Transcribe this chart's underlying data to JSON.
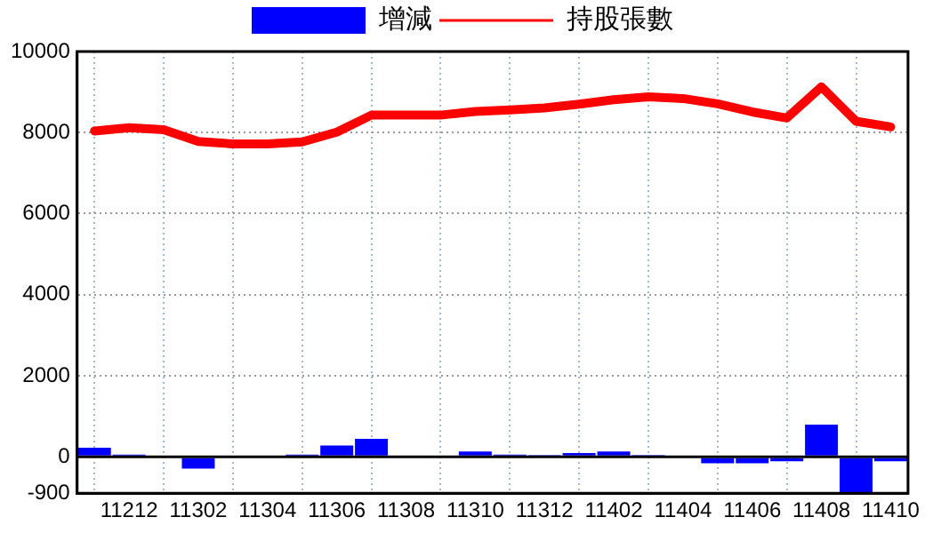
{
  "chart_data": {
    "type": "bar",
    "categories": [
      null,
      "11212",
      null,
      "11302",
      null,
      "11304",
      null,
      "11306",
      null,
      "11308",
      null,
      "11310",
      null,
      "11312",
      null,
      "11402",
      null,
      "11404",
      null,
      "11406",
      null,
      "11408",
      null,
      "11410"
    ],
    "series": [
      {
        "name": "增減",
        "color": "#0000ff",
        "values": [
          220,
          50,
          0,
          -290,
          0,
          0,
          50,
          280,
          440,
          0,
          0,
          130,
          50,
          40,
          90,
          130,
          40,
          0,
          -160,
          -160,
          -110,
          790,
          -880,
          -110
        ]
      },
      {
        "name": "持股張數",
        "type": "line",
        "color": "#ff0000",
        "values": [
          8040,
          8120,
          8070,
          7780,
          7720,
          7720,
          7770,
          8010,
          8430,
          8430,
          8430,
          8520,
          8560,
          8610,
          8700,
          8810,
          8880,
          8840,
          8710,
          8510,
          8360,
          9130,
          8280,
          8140
        ]
      }
    ],
    "ylim": [
      -900,
      10000
    ],
    "yticks": [
      -900,
      0,
      2000,
      4000,
      6000,
      8000,
      10000
    ],
    "ref_lines": [
      {
        "axis": "y",
        "value": 0,
        "color": "#000000",
        "line_style": "solid"
      }
    ],
    "grid": true,
    "legend": "top",
    "marker": "none",
    "line_style": "solid"
  }
}
